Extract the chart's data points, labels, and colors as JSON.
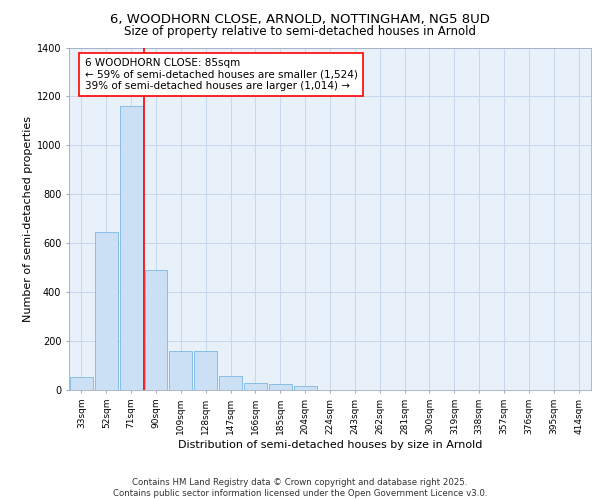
{
  "title_line1": "6, WOODHORN CLOSE, ARNOLD, NOTTINGHAM, NG5 8UD",
  "title_line2": "Size of property relative to semi-detached houses in Arnold",
  "xlabel": "Distribution of semi-detached houses by size in Arnold",
  "ylabel": "Number of semi-detached properties",
  "categories": [
    "33sqm",
    "52sqm",
    "71sqm",
    "90sqm",
    "109sqm",
    "128sqm",
    "147sqm",
    "166sqm",
    "185sqm",
    "204sqm",
    "224sqm",
    "243sqm",
    "262sqm",
    "281sqm",
    "300sqm",
    "319sqm",
    "338sqm",
    "357sqm",
    "376sqm",
    "395sqm",
    "414sqm"
  ],
  "values": [
    55,
    645,
    1160,
    490,
    160,
    160,
    58,
    30,
    25,
    18,
    0,
    0,
    0,
    0,
    0,
    0,
    0,
    0,
    0,
    0,
    0
  ],
  "bar_color": "#cce0f5",
  "bar_edge_color": "#6aaee0",
  "grid_color": "#c8d8ec",
  "background_color": "#e8f0fa",
  "vline_x": 2.5,
  "vline_color": "red",
  "annotation_text": "6 WOODHORN CLOSE: 85sqm\n← 59% of semi-detached houses are smaller (1,524)\n39% of semi-detached houses are larger (1,014) →",
  "annotation_box_color": "white",
  "annotation_box_edge": "red",
  "ylim": [
    0,
    1400
  ],
  "yticks": [
    0,
    200,
    400,
    600,
    800,
    1000,
    1200,
    1400
  ],
  "footer_text": "Contains HM Land Registry data © Crown copyright and database right 2025.\nContains public sector information licensed under the Open Government Licence v3.0.",
  "title_fontsize": 9.5,
  "subtitle_fontsize": 8.5,
  "axis_label_fontsize": 8,
  "tick_fontsize": 6.5,
  "annotation_fontsize": 7.5,
  "footer_fontsize": 6.2
}
